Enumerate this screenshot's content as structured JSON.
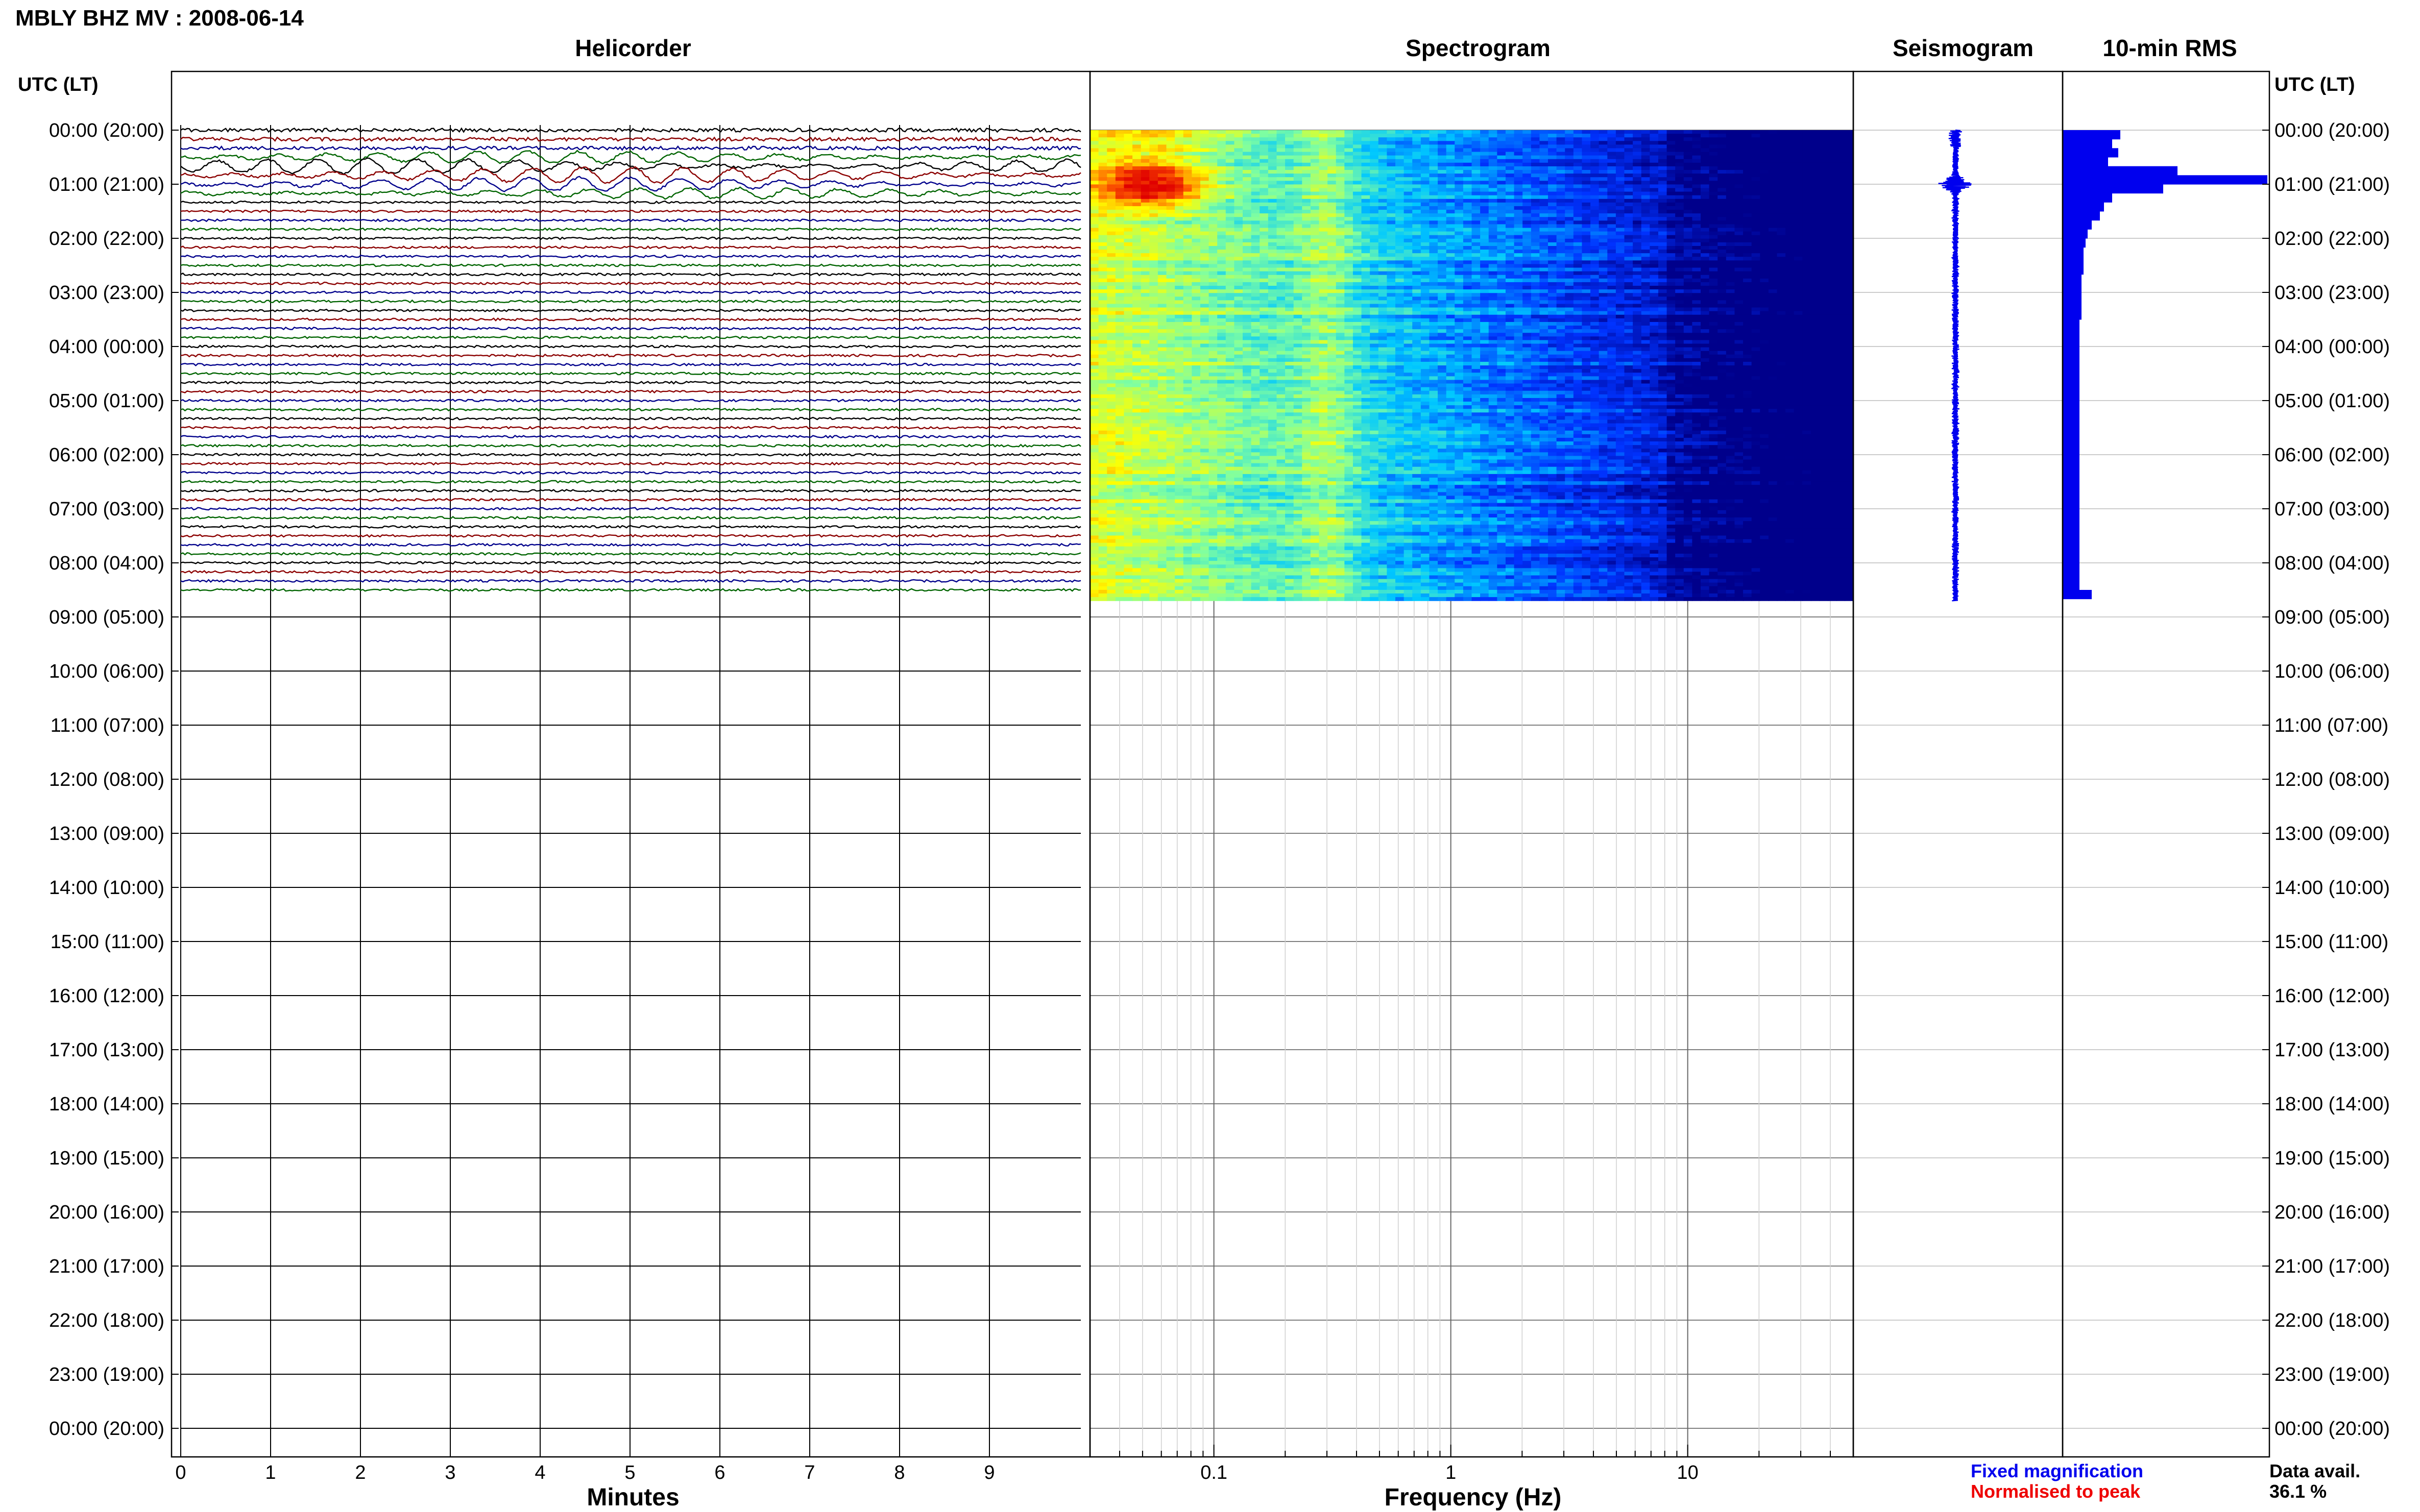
{
  "header": {
    "station_title": "MBLY BHZ MV : 2008-06-14",
    "left_axis_header": "UTC (LT)",
    "right_axis_header": "UTC (LT)"
  },
  "panels": {
    "helicorder_title": "Helicorder",
    "spectrogram_title": "Spectrogram",
    "seismogram_title": "Seismogram",
    "rms_title": "10-min RMS"
  },
  "legend": {
    "fixed_magnification": "Fixed magnification",
    "fixed_magnification_color": "#0000ee",
    "normalised_to_peak": "Normalised to peak",
    "normalised_to_peak_color": "#ee0000",
    "data_avail_label": "Data avail.",
    "data_avail_value": "36.1 %"
  },
  "chart_data": [
    {
      "type": "line",
      "name": "helicorder",
      "title": "Helicorder",
      "xlabel": "Minutes",
      "x_ticks": [
        "0",
        "1",
        "2",
        "3",
        "4",
        "5",
        "6",
        "7",
        "8",
        "9"
      ],
      "xlim": [
        0,
        10
      ],
      "y_time_labels": [
        "00:00 (20:00)",
        "01:00 (21:00)",
        "02:00 (22:00)",
        "03:00 (23:00)",
        "04:00 (00:00)",
        "05:00 (01:00)",
        "06:00 (02:00)",
        "07:00 (03:00)",
        "08:00 (04:00)",
        "09:00 (05:00)",
        "10:00 (06:00)",
        "11:00 (07:00)",
        "12:00 (08:00)",
        "13:00 (09:00)",
        "14:00 (10:00)",
        "15:00 (11:00)",
        "16:00 (12:00)",
        "17:00 (13:00)",
        "18:00 (14:00)",
        "19:00 (15:00)",
        "20:00 (16:00)",
        "21:00 (17:00)",
        "22:00 (18:00)",
        "23:00 (19:00)",
        "00:00 (20:00)"
      ],
      "trace_colors": [
        "#000000",
        "#8b0000",
        "#00008b",
        "#006400"
      ],
      "traces_minutes_per_line": 10,
      "data_hours": 8.7,
      "strong_activity_hours": [
        0.4,
        1.2
      ]
    },
    {
      "type": "heatmap",
      "name": "spectrogram",
      "title": "Spectrogram",
      "xlabel": "Frequency (Hz)",
      "x_scale": "log",
      "xlim": [
        0.03,
        50
      ],
      "x_ticks": [
        "0.1",
        "1",
        "10"
      ],
      "data_hours": 8.7,
      "colormap": [
        "#00008b",
        "#0033ff",
        "#00c8ff",
        "#80ffa0",
        "#ffff00",
        "#ff6000",
        "#e00000"
      ],
      "peak_frequency_hz": [
        0.04,
        0.08
      ],
      "peak_hours": [
        0.5,
        1.6
      ]
    },
    {
      "type": "line",
      "name": "seismogram",
      "title": "Seismogram",
      "color": "#0000ee",
      "data_hours": 8.7,
      "peak_hour": 1.0
    },
    {
      "type": "bar",
      "name": "rms",
      "title": "10-min RMS",
      "color": "#0000ee",
      "bin_minutes": 10,
      "values": [
        0.28,
        0.24,
        0.27,
        0.22,
        0.56,
        1.0,
        0.49,
        0.24,
        0.2,
        0.18,
        0.14,
        0.12,
        0.11,
        0.1,
        0.1,
        0.1,
        0.09,
        0.09,
        0.09,
        0.09,
        0.09,
        0.08,
        0.08,
        0.08,
        0.08,
        0.08,
        0.08,
        0.08,
        0.08,
        0.08,
        0.08,
        0.08,
        0.08,
        0.08,
        0.08,
        0.08,
        0.08,
        0.08,
        0.08,
        0.08,
        0.08,
        0.08,
        0.08,
        0.08,
        0.08,
        0.08,
        0.08,
        0.08,
        0.08,
        0.08,
        0.08,
        0.14
      ]
    }
  ]
}
